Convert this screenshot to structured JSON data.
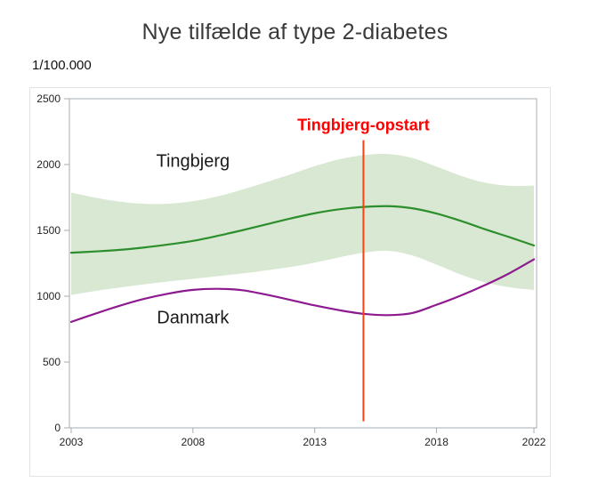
{
  "page": {
    "title": "Nye tilfælde af type 2-diabetes",
    "unit_label": "1/100.000"
  },
  "chart_data": {
    "type": "line",
    "title": "Nye tilfælde af type 2-diabetes",
    "ylabel": "1/100.000",
    "xlabel": "",
    "xlim": [
      2003,
      2022
    ],
    "ylim": [
      0,
      2500
    ],
    "xticks": [
      2003,
      2008,
      2013,
      2018,
      2022
    ],
    "yticks": [
      0,
      500,
      1000,
      1500,
      2000,
      2500
    ],
    "grid": false,
    "frame_color": "#a6acb1",
    "tick_color": "#a6acb1",
    "tick_label_color": "#242424",
    "x": [
      2003,
      2004,
      2005,
      2006,
      2007,
      2008,
      2009,
      2010,
      2011,
      2012,
      2013,
      2014,
      2015,
      2016,
      2017,
      2018,
      2019,
      2020,
      2021,
      2022
    ],
    "series": [
      {
        "name": "Tingbjerg",
        "color": "#2d8e2d",
        "label": "Tingbjerg",
        "label_pos": {
          "x": 2008,
          "y": 2030
        },
        "values": [
          1330,
          1340,
          1352,
          1370,
          1393,
          1420,
          1458,
          1500,
          1545,
          1590,
          1630,
          1660,
          1678,
          1684,
          1668,
          1628,
          1572,
          1508,
          1448,
          1385
        ]
      },
      {
        "name": "Danmark",
        "color": "#8d1a8f",
        "label": "Danmark",
        "label_pos": {
          "x": 2008,
          "y": 840
        },
        "values": [
          805,
          868,
          928,
          980,
          1020,
          1048,
          1056,
          1046,
          1012,
          972,
          930,
          894,
          866,
          856,
          872,
          935,
          1005,
          1085,
          1175,
          1280
        ]
      }
    ],
    "band": {
      "series": "Tingbjerg",
      "color": "#d9e8d2",
      "upper": [
        1788,
        1748,
        1718,
        1702,
        1703,
        1722,
        1758,
        1808,
        1866,
        1925,
        1988,
        2040,
        2072,
        2080,
        2050,
        1985,
        1915,
        1862,
        1838,
        1840
      ],
      "lower": [
        1010,
        1040,
        1066,
        1090,
        1112,
        1132,
        1152,
        1172,
        1196,
        1222,
        1255,
        1295,
        1330,
        1345,
        1310,
        1240,
        1165,
        1105,
        1068,
        1048
      ]
    },
    "annotation": {
      "label": "Tingbjerg-opstart",
      "x": 2015,
      "y_from": 50,
      "y_to": 2185,
      "label_y": 2300,
      "line_color": "#fb4213",
      "label_color": "#ff0000"
    }
  }
}
